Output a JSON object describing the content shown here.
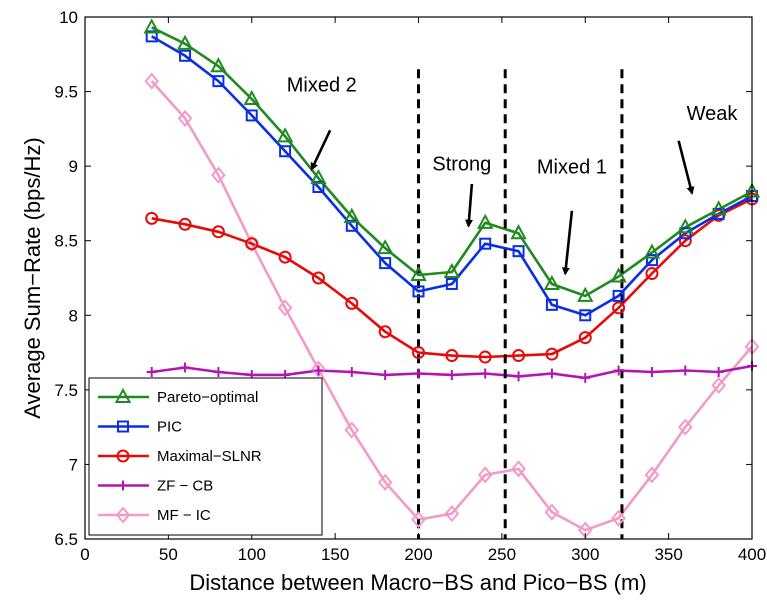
{
  "chart_data": {
    "type": "line",
    "title": "",
    "xlabel": "Distance between Macro−BS and Pico−BS (m)",
    "ylabel": "Average Sum−Rate (bps/Hz)",
    "xlim": [
      0,
      400
    ],
    "ylim": [
      6.5,
      10
    ],
    "xticks": [
      "0",
      "50",
      "100",
      "150",
      "200",
      "250",
      "300",
      "350",
      "400"
    ],
    "yticks": [
      "6.5",
      "7",
      "7.5",
      "8",
      "8.5",
      "9",
      "9.5",
      "10"
    ],
    "grid": false,
    "legend_position": "bottom-left",
    "x": [
      40,
      60,
      80,
      100,
      120,
      140,
      160,
      180,
      200,
      220,
      240,
      260,
      280,
      300,
      320,
      340,
      360,
      380,
      400
    ],
    "series": [
      {
        "name": "Pareto−optimal",
        "color": "#1f8a1f",
        "marker": "triangle",
        "values": [
          9.93,
          9.82,
          9.67,
          9.45,
          9.2,
          8.92,
          8.66,
          8.45,
          8.27,
          8.29,
          8.62,
          8.55,
          8.21,
          8.13,
          8.26,
          8.42,
          8.59,
          8.71,
          8.83
        ]
      },
      {
        "name": "PIC",
        "color": "#0a2ee6",
        "marker": "square",
        "values": [
          9.87,
          9.74,
          9.57,
          9.34,
          9.1,
          8.86,
          8.6,
          8.35,
          8.16,
          8.21,
          8.48,
          8.43,
          8.07,
          8.0,
          8.13,
          8.37,
          8.55,
          8.68,
          8.8
        ]
      },
      {
        "name": "Maximal−SLNR",
        "color": "#e60a0a",
        "marker": "circle",
        "values": [
          8.65,
          8.61,
          8.56,
          8.48,
          8.39,
          8.25,
          8.08,
          7.89,
          7.75,
          7.73,
          7.72,
          7.73,
          7.74,
          7.85,
          8.05,
          8.28,
          8.5,
          8.67,
          8.78
        ]
      },
      {
        "name": "ZF − CB",
        "color": "#b414b4",
        "marker": "plus",
        "values": [
          7.62,
          7.65,
          7.62,
          7.6,
          7.6,
          7.63,
          7.62,
          7.6,
          7.61,
          7.6,
          7.61,
          7.59,
          7.61,
          7.58,
          7.63,
          7.62,
          7.63,
          7.62,
          7.66
        ]
      },
      {
        "name": "MF − IC",
        "color": "#f49ac6",
        "marker": "diamond",
        "values": [
          9.57,
          9.32,
          8.94,
          8.48,
          8.05,
          7.64,
          7.23,
          6.88,
          6.63,
          6.67,
          6.93,
          6.97,
          6.68,
          6.56,
          6.64,
          6.93,
          7.25,
          7.53,
          7.79
        ]
      }
    ],
    "vertical_lines_x": [
      200,
      252,
      322
    ],
    "annotations": [
      {
        "text": "Mixed 2",
        "at": [
          142,
          9.5
        ],
        "arrow_from": [
          147,
          9.24
        ],
        "arrow_to": [
          136,
          8.98
        ]
      },
      {
        "text": "Strong",
        "at": [
          226,
          8.97
        ],
        "arrow_from": [
          232,
          8.88
        ],
        "arrow_to": [
          230,
          8.6
        ]
      },
      {
        "text": "Mixed 1",
        "at": [
          292,
          8.95
        ],
        "arrow_from": [
          292,
          8.7
        ],
        "arrow_to": [
          288,
          8.28
        ]
      },
      {
        "text": "Weak",
        "at": [
          376,
          9.31
        ],
        "arrow_from": [
          356,
          9.17
        ],
        "arrow_to": [
          364,
          8.82
        ]
      }
    ]
  }
}
